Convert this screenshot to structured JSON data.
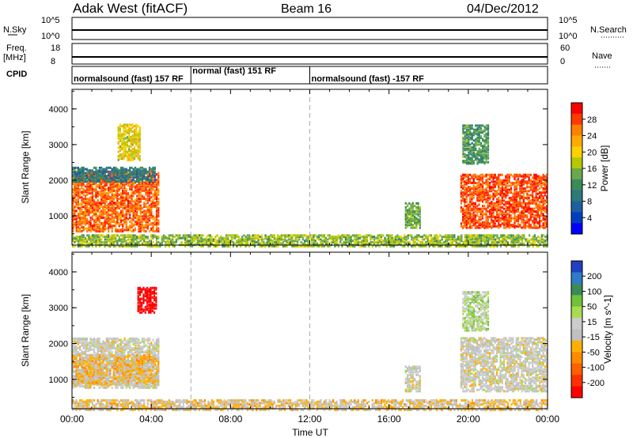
{
  "header": {
    "station": "Adak West (fitACF)",
    "beam": "Beam 16",
    "date": "04/Dec/2012"
  },
  "top_panels": {
    "nsky_label": "N.Sky",
    "nsky_ticks": [
      "10^5",
      "10^0"
    ],
    "nsearch_label": "N.Search",
    "nsearch_ticks": [
      "10^5",
      "10^0"
    ],
    "freq_label": "Freq.",
    "freq_unit": "[MHz]",
    "freq_ticks": [
      "18",
      "8"
    ],
    "nave_label": "Nave",
    "nave_ticks": [
      "60",
      "0"
    ],
    "cpid_label": "CPID",
    "cpid_segments": [
      {
        "label": "normalsound (fast) 157 RF",
        "start_h": 0,
        "end_h": 6
      },
      {
        "label": "normal (fast) 151 RF",
        "start_h": 6,
        "end_h": 12
      },
      {
        "label": "normalsound (fast) -157 RF",
        "start_h": 12,
        "end_h": 24
      }
    ]
  },
  "x_axis": {
    "label": "Time UT",
    "ticks": [
      "00:00",
      "04:00",
      "08:00",
      "12:00",
      "16:00",
      "20:00",
      "00:00"
    ]
  },
  "colorbars": {
    "power": {
      "label": "Power [dB]",
      "ticks": [
        "28",
        "24",
        "20",
        "16",
        "12",
        "8",
        "4"
      ],
      "colors": [
        "#ff0000",
        "#ff3a00",
        "#ff8000",
        "#ffaa00",
        "#ffd000",
        "#b4c800",
        "#6aa84f",
        "#3a8a5a",
        "#2c7a78",
        "#1f5fa0",
        "#0040c0",
        "#0000ff"
      ]
    },
    "velocity": {
      "label": "Velocity [m s^-1]",
      "ticks": [
        "200",
        "100",
        "50",
        "15",
        "-15",
        "-50",
        "-100",
        "-200"
      ],
      "colors": [
        "#2040c0",
        "#2f7acb",
        "#3a8a5a",
        "#70c03a",
        "#a8dc50",
        "#cccccc",
        "#c0c0c0",
        "#ffb000",
        "#ff8a00",
        "#ff6000",
        "#ff3000",
        "#ff0000"
      ]
    }
  },
  "chart_data": [
    {
      "type": "heatmap",
      "panel": "power",
      "ylabel": "Slant Range [km]",
      "y_ticks": [
        "1000",
        "2000",
        "3000",
        "4000"
      ],
      "xlim": [
        0,
        24
      ],
      "ylim": [
        180,
        4550
      ],
      "clim": [
        0,
        30
      ],
      "patches": [
        {
          "t0": 0.0,
          "t1": 4.4,
          "r0": 600,
          "r1": 2300,
          "value": 25
        },
        {
          "t0": 0.0,
          "t1": 4.2,
          "r0": 2000,
          "r1": 2400,
          "value": 9
        },
        {
          "t0": 2.3,
          "t1": 3.4,
          "r0": 2600,
          "r1": 3600,
          "value": 18
        },
        {
          "t0": 16.8,
          "t1": 17.6,
          "r0": 700,
          "r1": 1400,
          "value": 14
        },
        {
          "t0": 19.6,
          "t1": 24.0,
          "r0": 700,
          "r1": 2200,
          "value": 26
        },
        {
          "t0": 19.7,
          "t1": 21.0,
          "r0": 2500,
          "r1": 3600,
          "value": 12
        },
        {
          "t0": 0.0,
          "t1": 24.0,
          "r0": 180,
          "r1": 500,
          "value": 15
        }
      ]
    },
    {
      "type": "heatmap",
      "panel": "velocity",
      "ylabel": "Slant Range [km]",
      "y_ticks": [
        "1000",
        "2000",
        "3000",
        "4000"
      ],
      "xlim": [
        0,
        24
      ],
      "ylim": [
        180,
        4550
      ],
      "clim": [
        -200,
        200
      ],
      "patches": [
        {
          "t0": 0.0,
          "t1": 4.4,
          "r0": 800,
          "r1": 2200,
          "value": 0
        },
        {
          "t0": 0.0,
          "t1": 4.4,
          "r0": 900,
          "r1": 1700,
          "value": -40
        },
        {
          "t0": 3.3,
          "t1": 4.2,
          "r0": 2900,
          "r1": 3600,
          "value": -210
        },
        {
          "t0": 16.8,
          "t1": 17.6,
          "r0": 700,
          "r1": 1400,
          "value": 0
        },
        {
          "t0": 19.6,
          "t1": 24.0,
          "r0": 700,
          "r1": 2200,
          "value": 0
        },
        {
          "t0": 19.7,
          "t1": 21.0,
          "r0": 2400,
          "r1": 3500,
          "value": 40
        },
        {
          "t0": 0.0,
          "t1": 24.0,
          "r0": 180,
          "r1": 450,
          "value": -30
        }
      ]
    }
  ]
}
